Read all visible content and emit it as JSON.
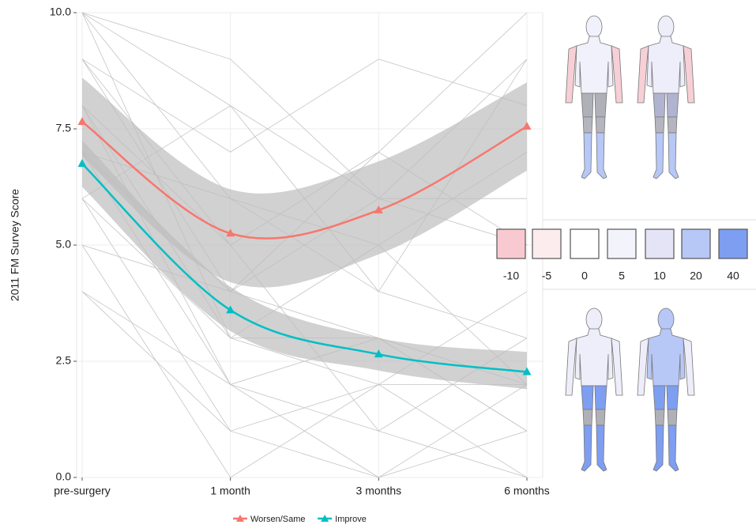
{
  "chart_data": {
    "type": "line",
    "y_label": "2011 FM Survey Score",
    "categories": [
      "pre-surgery",
      "1 month",
      "3 months",
      "6 months"
    ],
    "ylim": [
      0,
      10
    ],
    "yticks": [
      {
        "value": 0,
        "label": "0.0"
      },
      {
        "value": 2.5,
        "label": "2.5"
      },
      {
        "value": 5,
        "label": "5.0"
      },
      {
        "value": 7.5,
        "label": "7.5"
      },
      {
        "value": 10,
        "label": "10.0"
      }
    ],
    "grid": true,
    "band_color": "#bdbdbd",
    "trajectory_color": "#c4c4c4",
    "trajectories": [
      [
        10,
        8,
        6,
        9
      ],
      [
        9,
        4,
        3,
        2
      ],
      [
        8,
        5,
        7,
        10
      ],
      [
        7,
        2,
        1,
        0
      ],
      [
        6,
        3,
        2,
        2
      ],
      [
        10,
        6,
        4,
        3
      ],
      [
        4,
        1,
        0,
        1
      ],
      [
        9,
        7,
        9,
        8
      ],
      [
        5,
        0,
        2,
        4
      ],
      [
        8,
        3,
        3,
        1
      ],
      [
        7,
        6,
        5,
        7
      ],
      [
        6,
        1,
        2,
        0
      ],
      [
        10,
        9,
        6,
        5
      ],
      [
        9,
        5,
        1,
        3
      ],
      [
        5,
        4,
        6,
        6
      ],
      [
        8,
        2,
        0,
        2
      ],
      [
        7,
        4,
        7,
        5
      ],
      [
        10,
        3,
        5,
        2
      ],
      [
        6,
        8,
        4,
        9
      ],
      [
        4,
        2,
        3,
        1
      ]
    ],
    "series": [
      {
        "name": "Worsen/Same",
        "color": "#f8766d",
        "values": [
          7.65,
          5.25,
          5.75,
          7.55
        ],
        "band_lower": [
          6.9,
          4.2,
          4.8,
          6.6
        ],
        "band_upper": [
          8.6,
          6.2,
          6.8,
          8.5
        ]
      },
      {
        "name": "Improve",
        "color": "#00bfc4",
        "values": [
          6.75,
          3.6,
          2.65,
          2.27
        ],
        "band_lower": [
          6.25,
          3.15,
          2.3,
          1.9
        ],
        "band_upper": [
          7.25,
          4.1,
          3.0,
          2.7
        ]
      }
    ],
    "scale_legend": {
      "labels": [
        "-10",
        "-5",
        "0",
        "5",
        "10",
        "20",
        "40"
      ],
      "colors": [
        "#f9c9d1",
        "#fcecee",
        "#ffffff",
        "#f3f3fc",
        "#e4e4f6",
        "#b7c7f6",
        "#7e9ef2"
      ]
    }
  }
}
